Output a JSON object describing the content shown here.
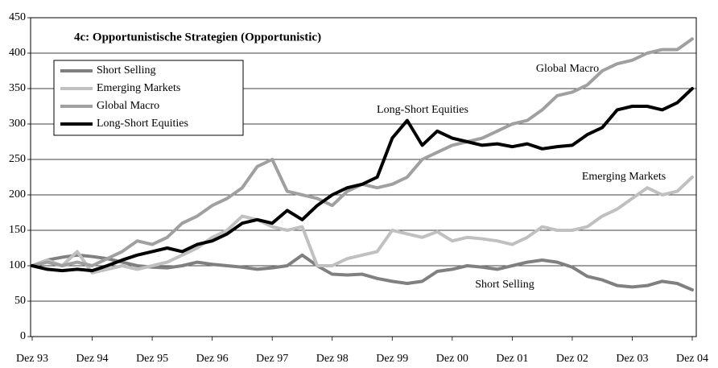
{
  "chart_data": {
    "type": "line",
    "title": "4c: Opportunistische Strategien (Opportunistic)",
    "categories": [
      "Dez 93",
      null,
      null,
      null,
      "Dez 94",
      null,
      null,
      null,
      "Dez 95",
      null,
      null,
      null,
      "Dez 96",
      null,
      null,
      null,
      "Dez 97",
      null,
      null,
      null,
      "Dez 98",
      null,
      null,
      null,
      "Dez 99",
      null,
      null,
      null,
      "Dez 00",
      null,
      null,
      null,
      "Dez 01",
      null,
      null,
      null,
      "Dez 02",
      null,
      null,
      null,
      "Dez 03",
      null,
      null,
      null,
      "Dez 04"
    ],
    "series": [
      {
        "name": "Short Selling",
        "color": "#808080",
        "values": [
          100,
          108,
          112,
          115,
          113,
          110,
          105,
          100,
          98,
          97,
          100,
          105,
          102,
          100,
          98,
          95,
          97,
          100,
          115,
          100,
          88,
          87,
          88,
          82,
          78,
          75,
          78,
          92,
          95,
          100,
          98,
          95,
          100,
          105,
          108,
          105,
          98,
          85,
          80,
          72,
          70,
          72,
          78,
          75,
          66
        ]
      },
      {
        "name": "Emerging Markets",
        "color": "#c0c0c0",
        "values": [
          100,
          108,
          100,
          120,
          90,
          95,
          100,
          95,
          100,
          105,
          115,
          125,
          140,
          150,
          170,
          165,
          155,
          150,
          155,
          100,
          100,
          110,
          115,
          120,
          150,
          145,
          140,
          148,
          135,
          140,
          138,
          135,
          130,
          140,
          155,
          150,
          150,
          155,
          170,
          180,
          195,
          210,
          200,
          205,
          225
        ]
      },
      {
        "name": "Global Macro",
        "color": "#a0a0a0",
        "values": [
          100,
          105,
          100,
          105,
          100,
          110,
          120,
          135,
          130,
          140,
          160,
          170,
          185,
          195,
          210,
          240,
          250,
          205,
          200,
          195,
          185,
          205,
          215,
          210,
          215,
          225,
          250,
          260,
          270,
          275,
          280,
          290,
          300,
          305,
          320,
          340,
          345,
          355,
          375,
          385,
          390,
          400,
          405,
          405,
          420
        ]
      },
      {
        "name": "Long-Short Equities",
        "color": "#000000",
        "values": [
          100,
          95,
          93,
          95,
          93,
          100,
          108,
          115,
          120,
          125,
          120,
          130,
          135,
          145,
          160,
          165,
          160,
          178,
          165,
          185,
          200,
          210,
          215,
          225,
          280,
          305,
          270,
          290,
          280,
          275,
          270,
          272,
          268,
          272,
          265,
          268,
          270,
          285,
          295,
          320,
          325,
          325,
          320,
          330,
          350
        ]
      }
    ],
    "annotations": [
      "Global Macro",
      "Long-Short Equities",
      "Emerging Markets",
      "Short Selling"
    ],
    "ylim": [
      0,
      450
    ],
    "yticks": [
      0,
      50,
      100,
      150,
      200,
      250,
      300,
      350,
      400,
      450
    ],
    "grid": true
  }
}
